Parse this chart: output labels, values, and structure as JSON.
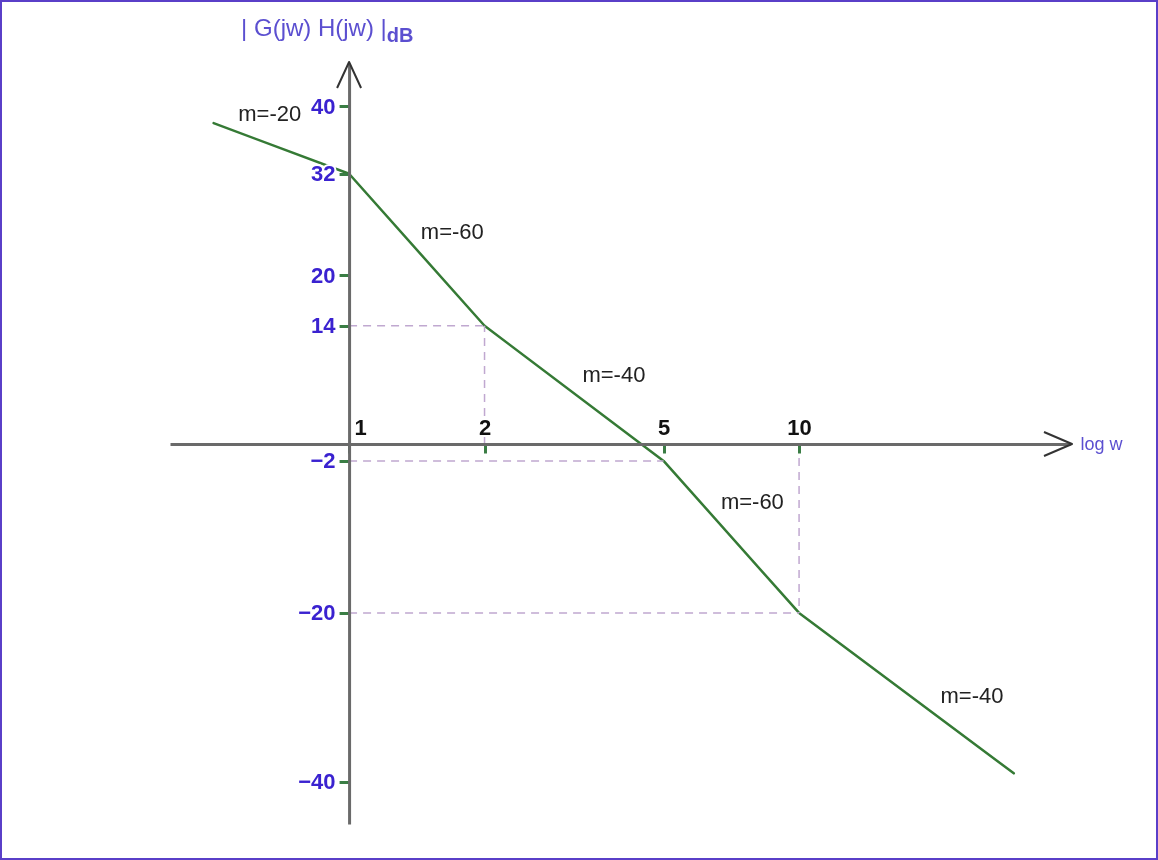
{
  "chart_data": {
    "type": "line",
    "xlabel": "log w",
    "ylabel": "| G(jw) H(jw) |$_{dB}$",
    "x": [
      0.5,
      1,
      2,
      5,
      10,
      30
    ],
    "series": [
      {
        "color": "#357a35",
        "values": [
          38,
          32,
          14,
          -2,
          -20,
          -39
        ]
      }
    ],
    "log": "x",
    "xlim": [
      0.4,
      40
    ],
    "xticks": [
      1,
      2,
      5,
      10
    ],
    "ylim": [
      -45,
      45
    ],
    "yticks": [
      40,
      32,
      20,
      14,
      -2,
      -20,
      -40
    ],
    "ref_lines": [
      {
        "axis": "y",
        "value": 14,
        "color": "#c0a8d0",
        "line_style": "dashed"
      },
      {
        "axis": "x",
        "value": 2,
        "color": "#c0a8d0",
        "line_style": "dashed"
      },
      {
        "axis": "y",
        "value": -2,
        "color": "#c0a8d0",
        "line_style": "dashed"
      },
      {
        "axis": "y",
        "value": -20,
        "color": "#c0a8d0",
        "line_style": "dashed"
      },
      {
        "axis": "x",
        "value": 10,
        "color": "#c0a8d0",
        "line_style": "dashed"
      }
    ],
    "annotations": [
      {
        "text": "m=-20",
        "x": 0.55,
        "y": 37
      },
      {
        "text": "m=-60",
        "x": 1.4,
        "y": 23
      },
      {
        "text": "m=-40",
        "x": 3.2,
        "y": 6
      },
      {
        "text": "m=-60",
        "x": 6.5,
        "y": -9
      },
      {
        "text": "m=-40",
        "x": 20,
        "y": -32
      }
    ]
  }
}
